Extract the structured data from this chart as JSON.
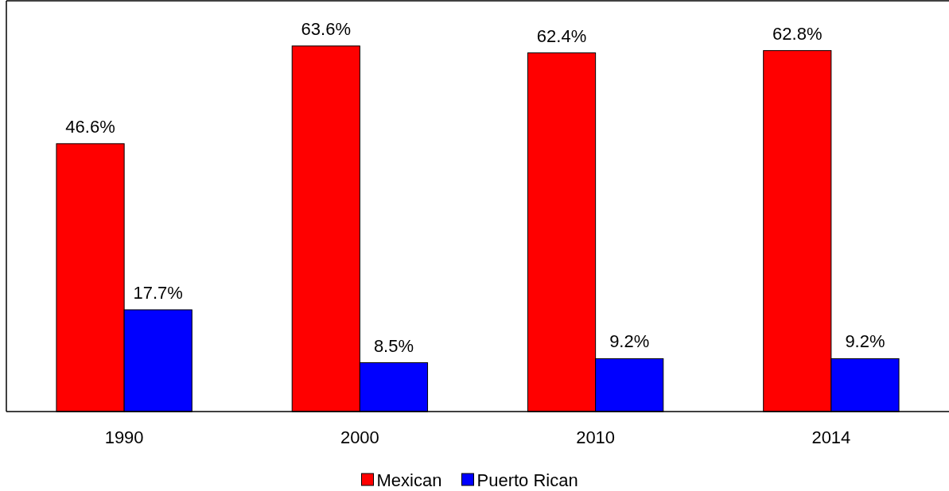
{
  "chart_data": {
    "type": "bar",
    "categories": [
      "1990",
      "2000",
      "2010",
      "2014"
    ],
    "series": [
      {
        "name": "Mexican",
        "color": "#ff0000",
        "values": [
          46.6,
          63.6,
          62.4,
          62.8
        ],
        "value_labels": [
          "46.6%",
          "63.6%",
          "62.4%",
          "62.8%"
        ]
      },
      {
        "name": "Puerto Rican",
        "color": "#0000ff",
        "values": [
          17.7,
          8.5,
          9.2,
          9.2
        ],
        "value_labels": [
          "17.7%",
          "8.5%",
          "9.2%",
          "9.2%"
        ]
      }
    ],
    "legend": "bottom",
    "grid": false
  }
}
